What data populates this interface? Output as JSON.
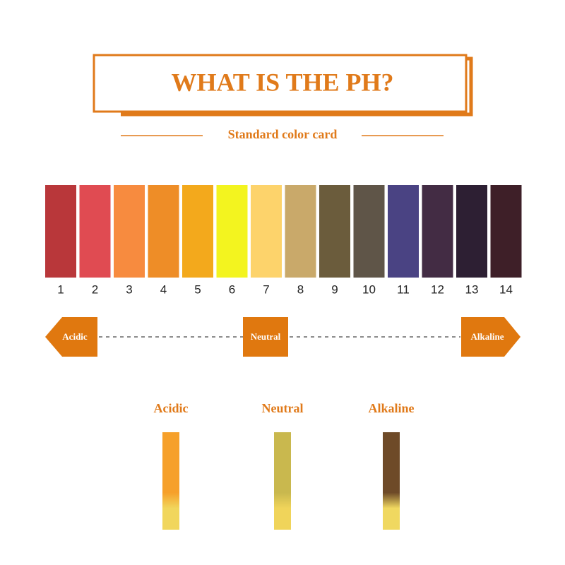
{
  "header": {
    "title": "WHAT IS THE PH?",
    "subtitle": "Standard color card"
  },
  "scale": [
    {
      "label": 1,
      "color": "#b9373a"
    },
    {
      "label": 2,
      "color": "#e04b52"
    },
    {
      "label": 3,
      "color": "#f78b3f"
    },
    {
      "label": 4,
      "color": "#ee8d27"
    },
    {
      "label": 5,
      "color": "#f3a91c"
    },
    {
      "label": 6,
      "color": "#f3f41f"
    },
    {
      "label": 7,
      "color": "#fdd36b"
    },
    {
      "label": 8,
      "color": "#c9a96a"
    },
    {
      "label": 9,
      "color": "#6b5c3c"
    },
    {
      "label": 10,
      "color": "#5f5548"
    },
    {
      "label": 11,
      "color": "#4a4383"
    },
    {
      "label": 12,
      "color": "#432c44"
    },
    {
      "label": 13,
      "color": "#2d1f33"
    },
    {
      "label": 14,
      "color": "#3e1f28"
    }
  ],
  "markers": {
    "acidic": "Acidic",
    "neutral": "Neutral",
    "alkaline": "Alkaline"
  },
  "strips": [
    {
      "label": "Acidic",
      "top": "#f6a02a",
      "bottom": "#f1d65c"
    },
    {
      "label": "Neutral",
      "top": "#c9b84e",
      "bottom": "#f0d45a"
    },
    {
      "label": "Alkaline",
      "top": "#6e4a28",
      "bottom": "#f0d860"
    }
  ]
}
